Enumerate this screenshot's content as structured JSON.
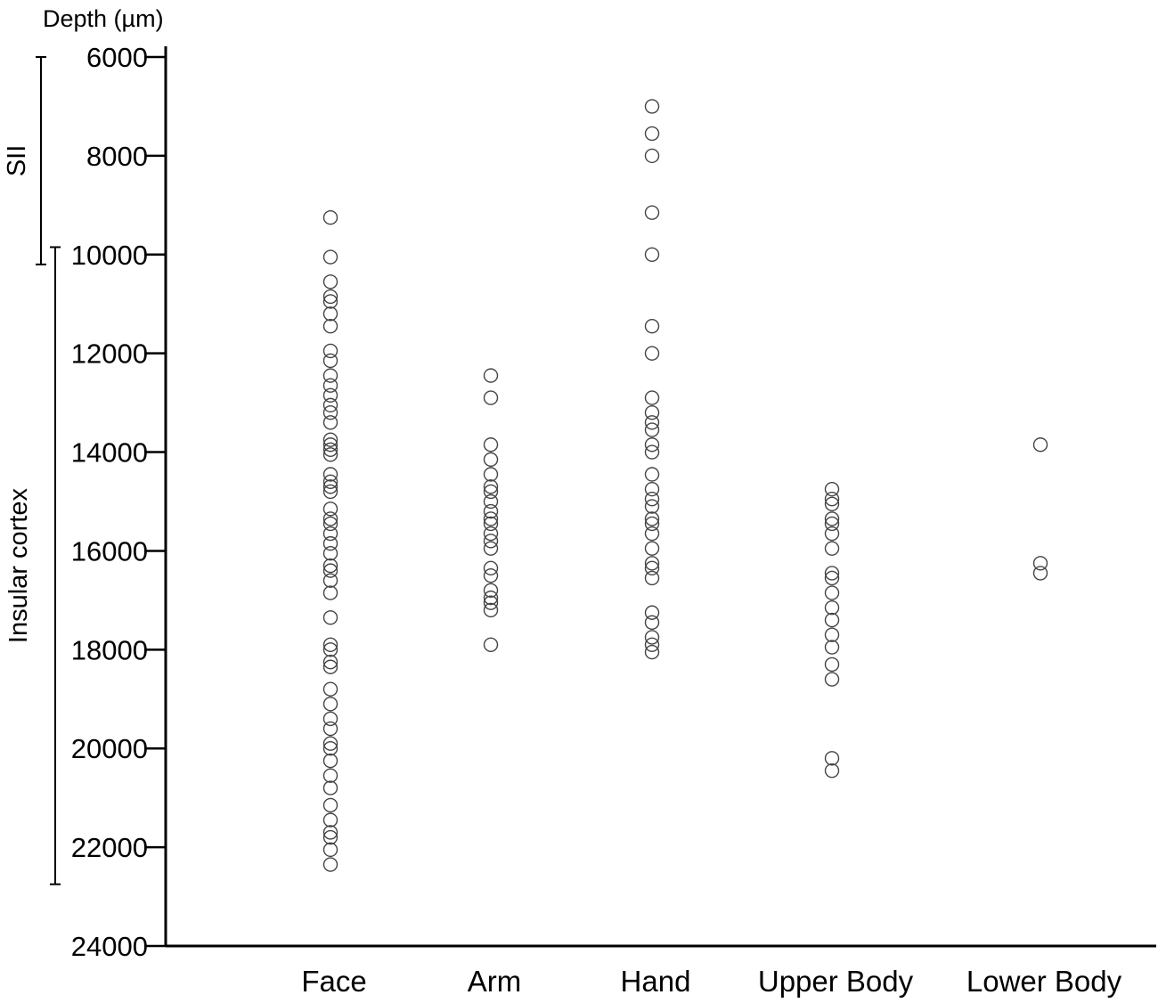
{
  "chart_data": {
    "type": "scatter",
    "ylabel": "Depth (µm)",
    "y_axis": "inverted",
    "ylim": [
      6000,
      24000
    ],
    "yticks": [
      6000,
      8000,
      10000,
      12000,
      14000,
      16000,
      18000,
      20000,
      22000,
      24000
    ],
    "categories": [
      "Face",
      "Arm",
      "Hand",
      "Upper Body",
      "Lower Body"
    ],
    "regions": [
      {
        "label": "SII",
        "from": 6000,
        "to": 10200
      },
      {
        "label": "Insular cortex",
        "from": 9850,
        "to": 22750
      }
    ],
    "series": [
      {
        "category": "Face",
        "values": [
          9250,
          10050,
          10550,
          10850,
          10950,
          11200,
          11450,
          11950,
          12150,
          12450,
          12650,
          12850,
          13050,
          13200,
          13400,
          13750,
          13850,
          13950,
          14050,
          14450,
          14600,
          14700,
          14800,
          15150,
          15350,
          15450,
          15650,
          15850,
          16050,
          16300,
          16400,
          16600,
          16850,
          17350,
          17900,
          18000,
          18250,
          18350,
          18800,
          19100,
          19400,
          19600,
          19900,
          20000,
          20250,
          20550,
          20800,
          21150,
          21450,
          21700,
          21800,
          22050,
          22350
        ]
      },
      {
        "category": "Arm",
        "values": [
          12450,
          12900,
          13850,
          14150,
          14450,
          14700,
          14800,
          15000,
          15200,
          15350,
          15450,
          15650,
          15800,
          15950,
          16350,
          16500,
          16800,
          16950,
          17050,
          17200,
          17900
        ]
      },
      {
        "category": "Hand",
        "values": [
          7000,
          7550,
          8000,
          9150,
          10000,
          11450,
          12000,
          12900,
          13200,
          13400,
          13550,
          13850,
          14000,
          14450,
          14750,
          14950,
          15100,
          15350,
          15450,
          15650,
          15950,
          16250,
          16350,
          16550,
          17250,
          17450,
          17750,
          17900,
          18050
        ]
      },
      {
        "category": "Upper Body",
        "values": [
          14750,
          14950,
          15050,
          15350,
          15450,
          15650,
          15950,
          16450,
          16550,
          16850,
          17150,
          17400,
          17700,
          17950,
          18300,
          18600,
          20200,
          20450
        ]
      },
      {
        "category": "Lower Body",
        "values": [
          13850,
          16250,
          16450
        ]
      }
    ]
  }
}
